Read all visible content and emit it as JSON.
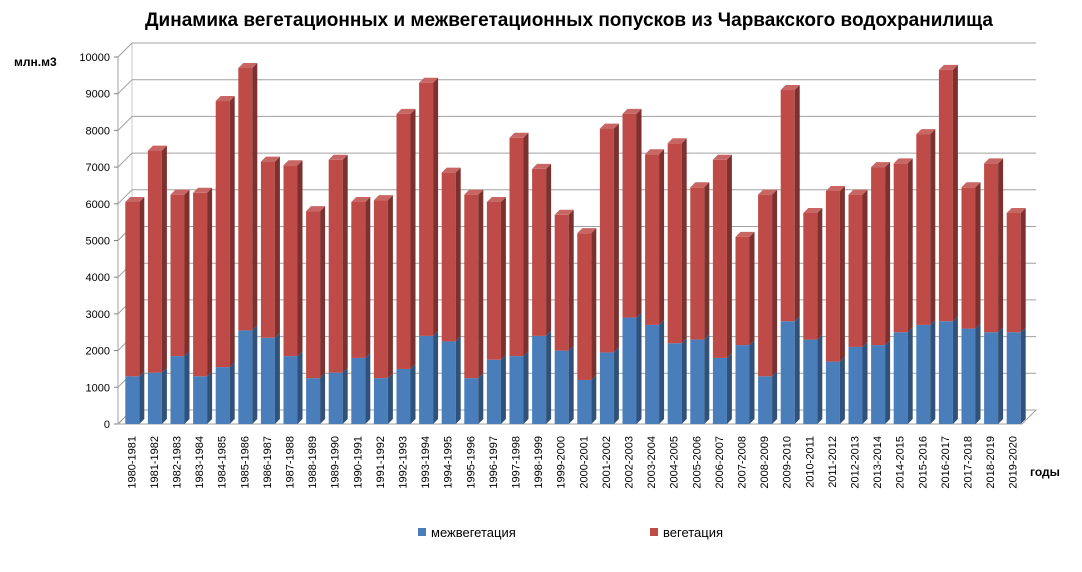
{
  "chart_data": {
    "type": "bar",
    "stacked": true,
    "three_d": true,
    "title": "Динамика вегетационных и межвегетационных попусков из Чарвакского водохранилища",
    "ylabel": "млн.м3",
    "xlabel": "годы",
    "ylim": [
      0,
      10000
    ],
    "yticks": [
      0,
      1000,
      2000,
      3000,
      4000,
      5000,
      6000,
      7000,
      8000,
      9000,
      10000
    ],
    "grid": true,
    "legend_position": "bottom",
    "categories": [
      "1980-1981",
      "1981-1982",
      "1982-1983",
      "1983-1984",
      "1984-1985",
      "1985-1986",
      "1986-1987",
      "1987-1988",
      "1988-1989",
      "1989-1990",
      "1990-1991",
      "1991-1992",
      "1992-1993",
      "1993-1994",
      "1994-1995",
      "1995-1996",
      "1996-1997",
      "1997-1998",
      "1998-1999",
      "1999-2000",
      "2000-2001",
      "2001-2002",
      "2002-2003",
      "2003-2004",
      "2004-2005",
      "2005-2006",
      "2006-2007",
      "2007-2008",
      "2008-2009",
      "2009-2010",
      "2010-2011",
      "2011-2012",
      "2012-2013",
      "2013-2014",
      "2014-2015",
      "2015-2016",
      "2016-2017",
      "2017-2018",
      "2018-2019",
      "2019-2020"
    ],
    "series": [
      {
        "name": "межвегетация",
        "color": "#4a7ebb",
        "values": [
          1300,
          1400,
          1850,
          1300,
          1550,
          2550,
          2350,
          1850,
          1250,
          1400,
          1800,
          1250,
          1500,
          2400,
          2250,
          1250,
          1750,
          1850,
          2400,
          2000,
          1200,
          1950,
          2900,
          2700,
          2200,
          2300,
          1800,
          2150,
          1300,
          2800,
          2300,
          1700,
          2100,
          2150,
          2500,
          2700,
          2800,
          2600,
          2500,
          2500
        ]
      },
      {
        "name": "вегетация",
        "color": "#be4b48",
        "values": [
          4750,
          6050,
          4400,
          5000,
          7250,
          7150,
          4800,
          5200,
          4550,
          5800,
          4250,
          4850,
          6950,
          6900,
          4600,
          5000,
          4300,
          5950,
          4550,
          3700,
          4000,
          6100,
          5550,
          4650,
          5450,
          4150,
          5400,
          2950,
          4950,
          6300,
          3450,
          4650,
          4150,
          4850,
          4600,
          5200,
          6850,
          3850,
          4600,
          3250
        ]
      }
    ]
  }
}
